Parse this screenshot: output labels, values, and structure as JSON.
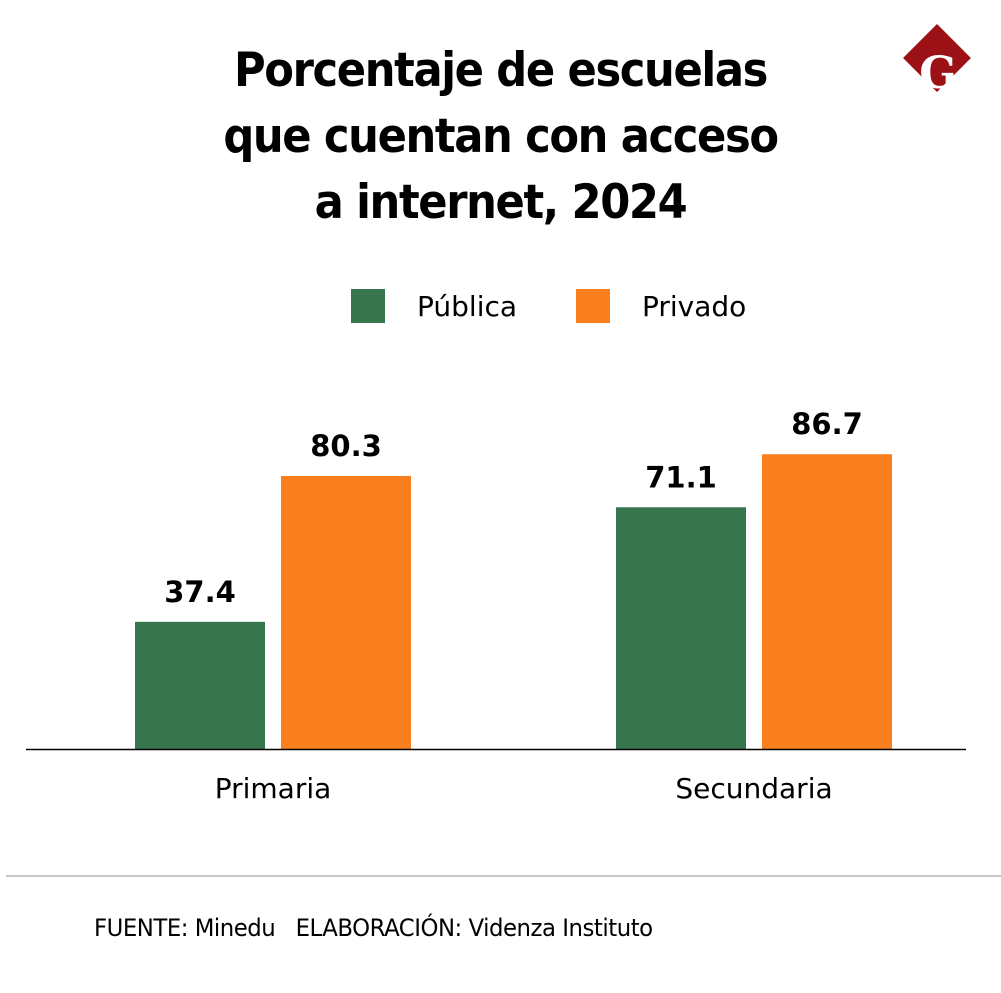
{
  "brand": {
    "logo_letter": "G",
    "logo_color": "#9b1116"
  },
  "chart_data": {
    "type": "bar",
    "title": "Porcentaje de escuelas que cuentan con acceso a internet, 2024",
    "title_lines": [
      "Porcentaje de escuelas",
      "que cuentan con acceso",
      "a internet, 2024"
    ],
    "categories": [
      "Primaria",
      "Secundaria"
    ],
    "series": [
      {
        "name": "Pública",
        "color": "#37754e",
        "values": [
          37.4,
          71.1
        ],
        "labels": [
          "37.4",
          "71.1"
        ]
      },
      {
        "name": "Privado",
        "color": "#f97f1e",
        "values": [
          80.3,
          86.7
        ],
        "labels": [
          "80.3",
          "86.7"
        ]
      }
    ],
    "xlabel": "",
    "ylabel": "",
    "ylim": [
      0,
      100
    ],
    "grid": false,
    "legend_position": "top-center"
  },
  "footer": {
    "source": "FUENTE: Minedu   ELABORACIÓN: Videnza Instituto"
  }
}
